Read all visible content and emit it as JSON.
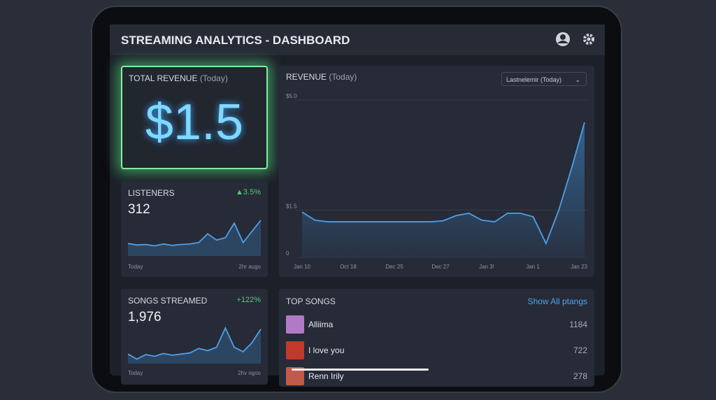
{
  "header": {
    "title": "STREAMING ANALYTICS - DASHBOARD"
  },
  "revenue_card": {
    "label": "TOTAL REVENUE",
    "label_note": "(Today)",
    "value": "$1.5"
  },
  "listeners_card": {
    "label": "LISTENERS",
    "change": "▲3.5%",
    "value": "312",
    "sparkline": [
      2,
      1.7,
      1.8,
      1.5,
      1.9,
      1.6,
      1.8,
      1.9,
      2.2,
      4,
      2.7,
      3.2,
      6.2,
      2.2,
      4.5,
      6.8
    ],
    "x_start": "Today",
    "x_end": "2hr augo"
  },
  "songs_card": {
    "label": "SONGS STREAMED",
    "change": "+122%",
    "value": "1,976",
    "sparkline": [
      1.2,
      0.3,
      1.1,
      0.8,
      1.3,
      1,
      1.2,
      1.4,
      2.2,
      1.8,
      2.4,
      5.8,
      2.4,
      1.6,
      3.2,
      5.6
    ],
    "x_start": "Today",
    "x_end": "2hv ogoo"
  },
  "revenue_chart": {
    "label": "REVENUE",
    "label_note": "(Today)",
    "range_select": "Lastnelemir (Today)",
    "yticks": [
      {
        "value": 5,
        "label": "$5.0"
      },
      {
        "value": 1.5,
        "label": "$1.5"
      },
      0
    ],
    "ylim": [
      0,
      5
    ],
    "x_labels": [
      "Jan 10",
      "Oct 18",
      "Dec 25",
      "Dec 27",
      "Jan 3!",
      "Jan 1",
      "Jan 23"
    ],
    "values": [
      1.44,
      1.18,
      1.13,
      1.13,
      1.13,
      1.13,
      1.13,
      1.13,
      1.13,
      1.13,
      1.13,
      1.16,
      1.33,
      1.4,
      1.18,
      1.13,
      1.4,
      1.4,
      1.29,
      0.44,
      1.51,
      2.84,
      4.29
    ]
  },
  "top_songs": {
    "label": "TOP SONGS",
    "link": "Show All ptangs",
    "rows": [
      {
        "title": "Alliima",
        "plays": "1184"
      },
      {
        "title": "I love you",
        "plays": "722"
      },
      {
        "title": "Renn Irily",
        "plays": "278"
      }
    ]
  }
}
